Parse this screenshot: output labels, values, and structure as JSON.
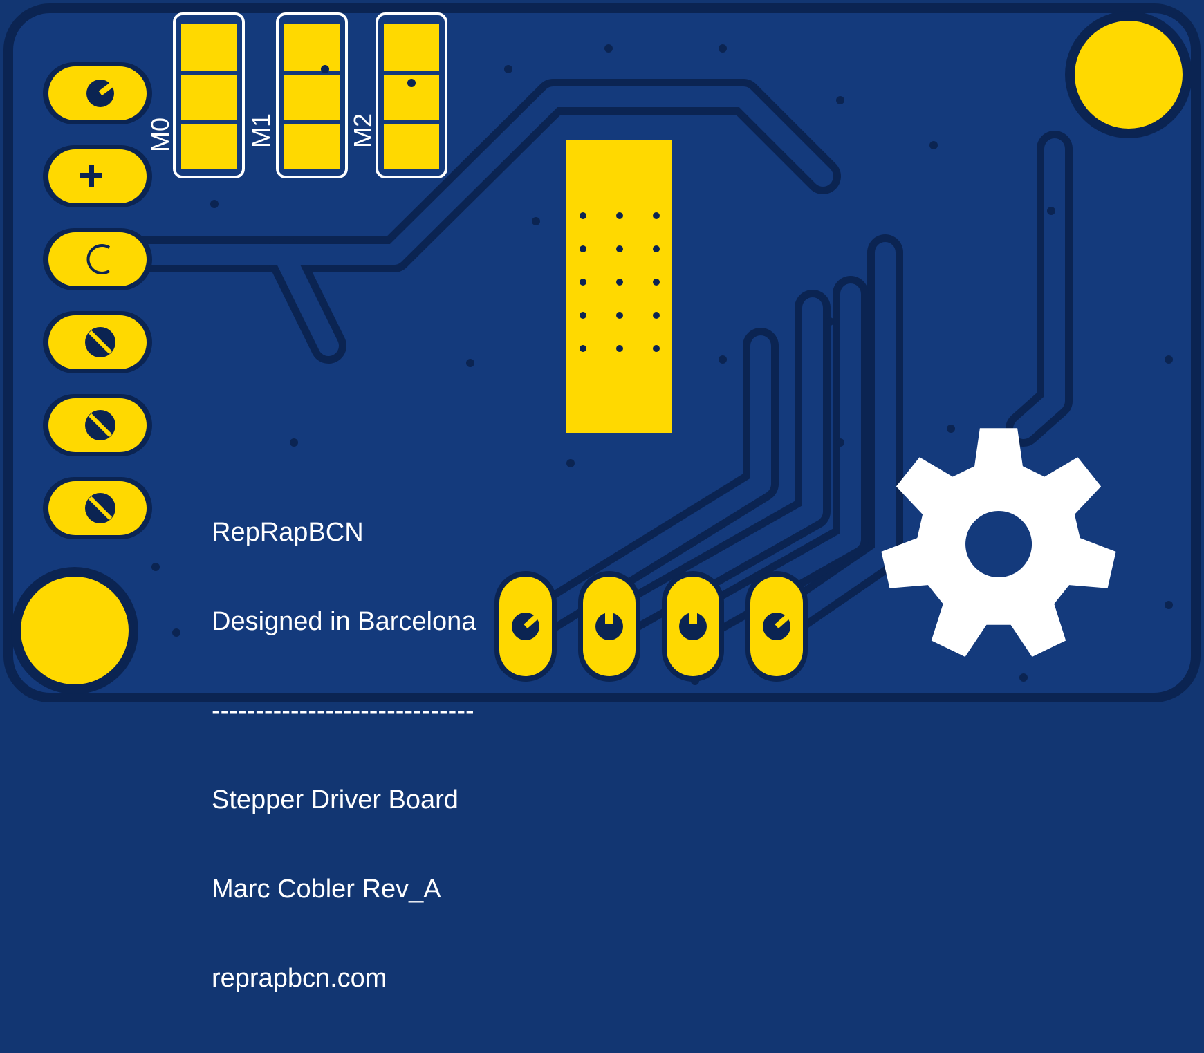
{
  "board": {
    "colors": {
      "substrate": "#123672",
      "copper_fill": "#143a7c",
      "clearance": "#0b2452",
      "pad": "#ffd900",
      "silkscreen": "#ffffff",
      "via_hole": "#0b2452"
    }
  },
  "jumpers": [
    {
      "label": "M0"
    },
    {
      "label": "M1"
    },
    {
      "label": "M2"
    }
  ],
  "silkscreen": {
    "lines": [
      "RepRapBCN",
      "Designed in Barcelona",
      "------------------------------",
      "Stepper Driver Board",
      "Marc Cobler Rev_A",
      "reprapbcn.com"
    ]
  },
  "logo": {
    "icon": "open-hardware-gear-icon"
  },
  "pin_header_left": {
    "count": 6
  },
  "pin_header_bottom": {
    "count": 4
  },
  "mounting_holes": {
    "count": 2
  },
  "thermal_pad": {
    "via_rows": 5,
    "via_cols": 3
  }
}
